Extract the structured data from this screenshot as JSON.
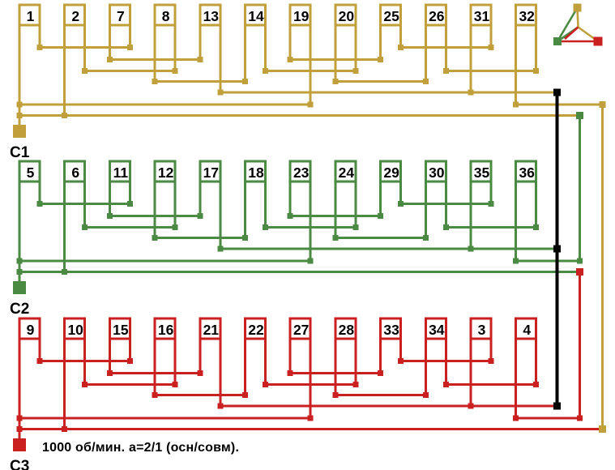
{
  "note": {
    "text": "1000 об/мин. a=2/1 (осн/совм)."
  },
  "colors": {
    "phase_c1": "#C1A03C",
    "phase_c2": "#4A8A42",
    "phase_c3": "#CB2020",
    "neutral": "#000000",
    "background": "#FFFFFF",
    "text": "#000000"
  },
  "phases": [
    {
      "terminal": "С1",
      "color_key": "phase_c1",
      "coils": [
        "1",
        "2",
        "7",
        "8",
        "13",
        "14",
        "19",
        "20",
        "25",
        "26",
        "31",
        "32"
      ]
    },
    {
      "terminal": "С2",
      "color_key": "phase_c2",
      "coils": [
        "5",
        "6",
        "11",
        "12",
        "17",
        "18",
        "23",
        "24",
        "29",
        "30",
        "35",
        "36"
      ]
    },
    {
      "terminal": "С3",
      "color_key": "phase_c3",
      "coils": [
        "9",
        "10",
        "15",
        "16",
        "21",
        "22",
        "27",
        "28",
        "33",
        "34",
        "3",
        "4"
      ]
    }
  ],
  "legend": {
    "icon": "star-delta-icon"
  }
}
